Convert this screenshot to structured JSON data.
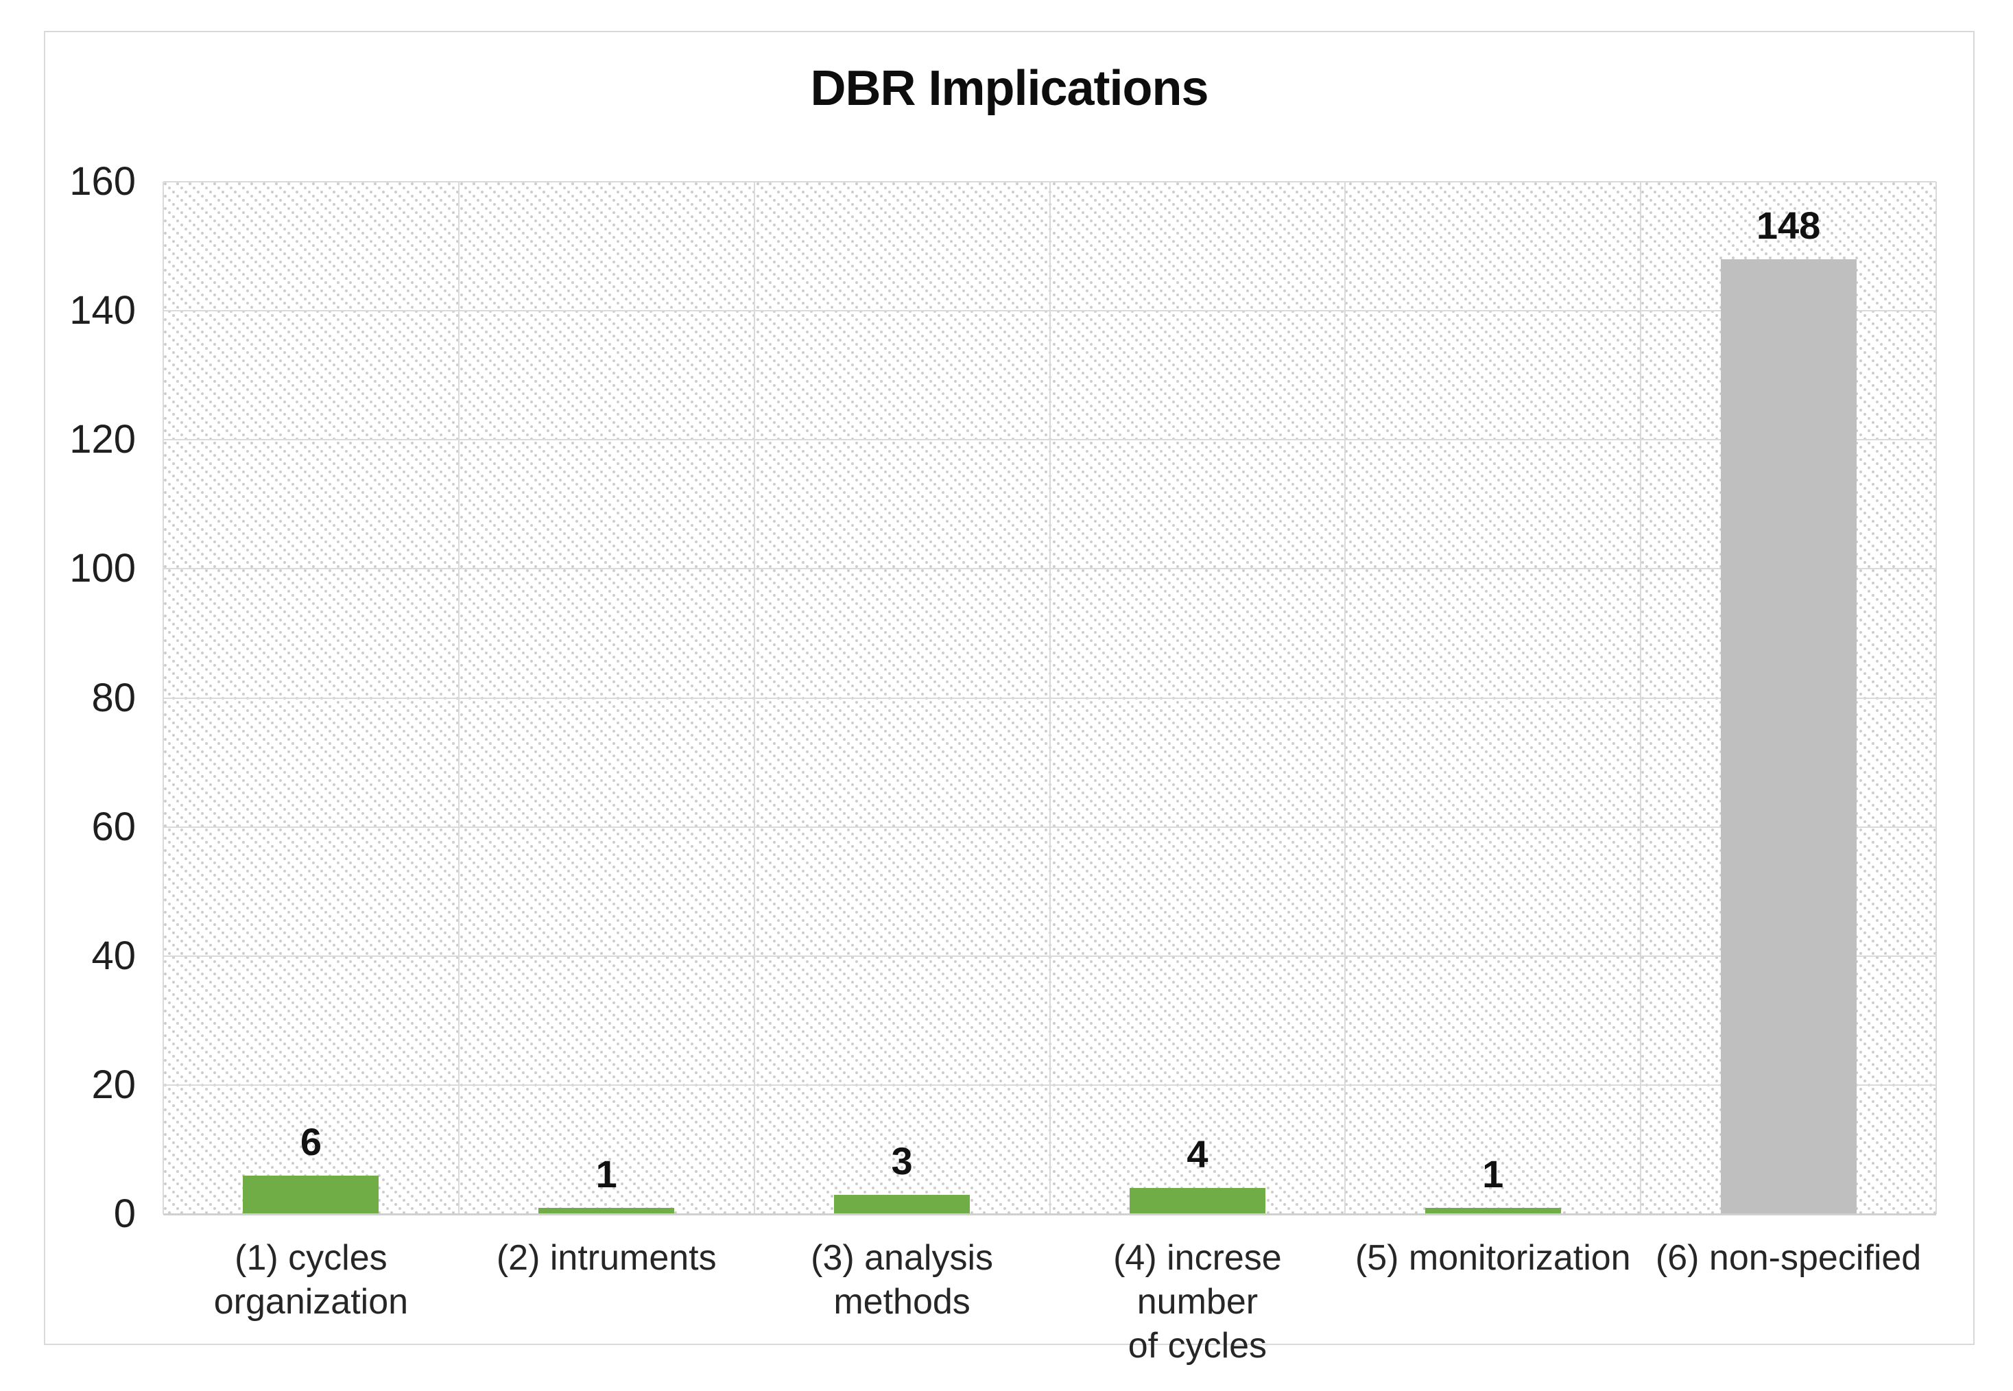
{
  "chart_data": {
    "type": "bar",
    "title": "DBR Implications",
    "categories": [
      "(1) cycles\norganization",
      "(2) intruments",
      "(3) analysis\nmethods",
      "(4) increse number\nof cycles",
      "(5) monitorization",
      "(6) non-specified"
    ],
    "values": [
      6,
      1,
      3,
      4,
      1,
      148
    ],
    "data_labels": [
      "6",
      "1",
      "3",
      "4",
      "1",
      "148"
    ],
    "bar_colors": [
      "#70AD47",
      "#70AD47",
      "#70AD47",
      "#70AD47",
      "#70AD47",
      "#BFBFBF"
    ],
    "xlabel": "",
    "ylabel": "",
    "ylim": [
      0,
      160
    ],
    "yticks": [
      0,
      20,
      40,
      60,
      80,
      100,
      120,
      140,
      160
    ],
    "ytick_labels": [
      "0",
      "20",
      "40",
      "60",
      "80",
      "100",
      "120",
      "140",
      "160"
    ],
    "legend": "none",
    "grid": "horizontal gridlines plus vertical category separators",
    "plot_background": "white with light gray dotted diagonal hatch",
    "colors": {
      "green_bar": "#70AD47",
      "gray_bar": "#BFBFBF",
      "gridline": "#dadada",
      "axis_line": "#d0d0d0",
      "hatch_dot": "#cdcdcd",
      "figure_border": "#d9d9d9",
      "text": "#1f1f1f",
      "title_text": "#0d0d0d"
    }
  }
}
